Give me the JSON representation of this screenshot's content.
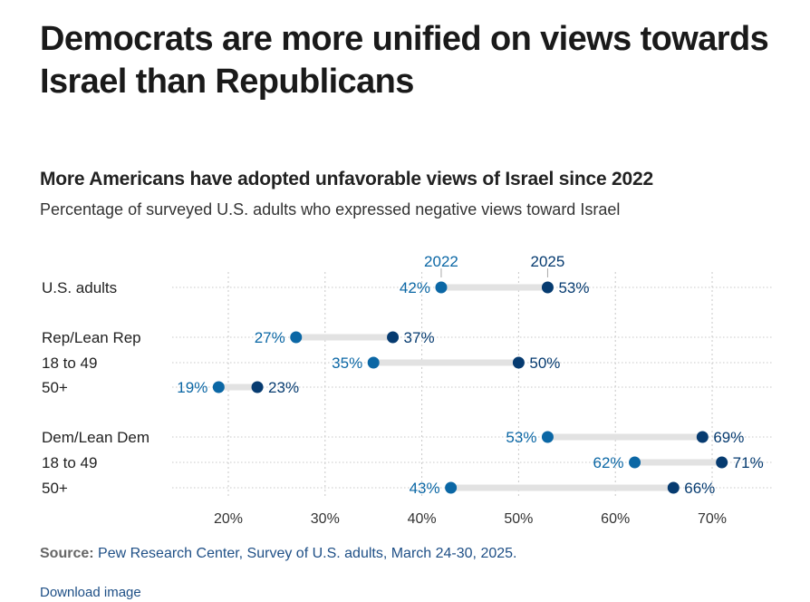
{
  "header": {
    "title": "Democrats are more unified on views towards Israel than Republicans"
  },
  "chart_data": {
    "type": "dumbbell",
    "title": "More Americans have adopted unfavorable views of Israel since 2022",
    "subtitle": "Percentage of surveyed U.S. adults who expressed negative views toward Israel",
    "xlabel": "",
    "ylabel": "",
    "xlim": [
      15,
      75
    ],
    "grid": true,
    "x_ticks": [
      20,
      30,
      40,
      50,
      60,
      70
    ],
    "x_tick_labels": [
      "20%",
      "30%",
      "40%",
      "50%",
      "60%",
      "70%"
    ],
    "legend": {
      "series": [
        "2022",
        "2025"
      ],
      "placement": "top, attached to first row"
    },
    "series": [
      {
        "name": "2022",
        "color": "#0b67a5"
      },
      {
        "name": "2025",
        "color": "#063b70"
      }
    ],
    "rows": [
      {
        "label": "U.S. adults",
        "v2022": 42,
        "v2025": 53,
        "group_start": true
      },
      {
        "label": "Rep/Lean Rep",
        "v2022": 27,
        "v2025": 37,
        "group_start": true
      },
      {
        "label": "18 to 49",
        "v2022": 35,
        "v2025": 50,
        "group_start": false
      },
      {
        "label": "50+",
        "v2022": 19,
        "v2025": 23,
        "group_start": false
      },
      {
        "label": "Dem/Lean Dem",
        "v2022": 53,
        "v2025": 69,
        "group_start": true
      },
      {
        "label": "18 to 49",
        "v2022": 62,
        "v2025": 71,
        "group_start": false
      },
      {
        "label": "50+",
        "v2022": 43,
        "v2025": 66,
        "group_start": false
      }
    ],
    "value_suffix": "%"
  },
  "colors": {
    "color_2022": "#0b67a5",
    "color_2025": "#063b70",
    "connector": "#e2e2e2",
    "grid": "#c8c8c8"
  },
  "footer": {
    "source_label": "Source:",
    "source_text": " Pew Research Center, Survey of U.S. adults, March 24-30, 2025.",
    "download_label": "Download image"
  }
}
